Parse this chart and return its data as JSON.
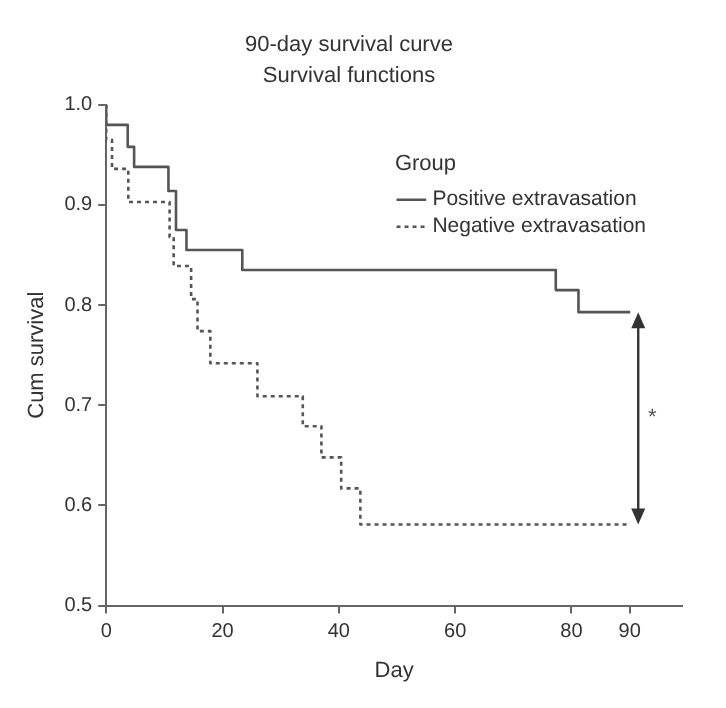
{
  "chart_data": {
    "type": "step",
    "title": "90-day survival curve",
    "subtitle": "Survival functions",
    "xlabel": "Day",
    "ylabel": "Cum survival",
    "legend_title": "Group",
    "legend": "top right",
    "grid": false,
    "marker": "none",
    "xlim": [
      0,
      99
    ],
    "xticks": [
      0,
      20,
      40,
      60,
      80,
      90
    ],
    "ylim": [
      0.5,
      1.0
    ],
    "yticks": [
      {
        "value": 0.5,
        "label": "0.5"
      },
      {
        "value": 0.6,
        "label": "0.6"
      },
      {
        "value": 0.7,
        "label": "0.7"
      },
      {
        "value": 0.8,
        "label": "0.8"
      },
      {
        "value": 0.9,
        "label": "0.9"
      },
      {
        "value": 1,
        "label": "1.0"
      }
    ],
    "series": [
      {
        "name": "Positive extravasation",
        "color": "#555555",
        "line_style": "solid",
        "x": [
          0,
          3.7,
          4.8,
          10.7,
          12,
          13.8,
          23.4,
          77.3,
          81.2,
          86,
          90.1
        ],
        "values": [
          1,
          0.98,
          0.958,
          0.938,
          0.914,
          0.875,
          0.855,
          0.835,
          0.815,
          0.793,
          0.793
        ]
      },
      {
        "name": "Negative extravasation",
        "color": "#555555",
        "line_style": "dotted",
        "x": [
          0,
          1,
          3.8,
          10.9,
          11.6,
          14.6,
          15.7,
          17.9,
          26,
          33.8,
          37,
          40.4,
          43.7,
          87.3,
          90
        ],
        "values": [
          1,
          0.965,
          0.936,
          0.903,
          0.868,
          0.839,
          0.806,
          0.774,
          0.742,
          0.709,
          0.679,
          0.648,
          0.617,
          0.581,
          0.581
        ]
      }
    ],
    "annotations": [
      "*"
    ]
  }
}
